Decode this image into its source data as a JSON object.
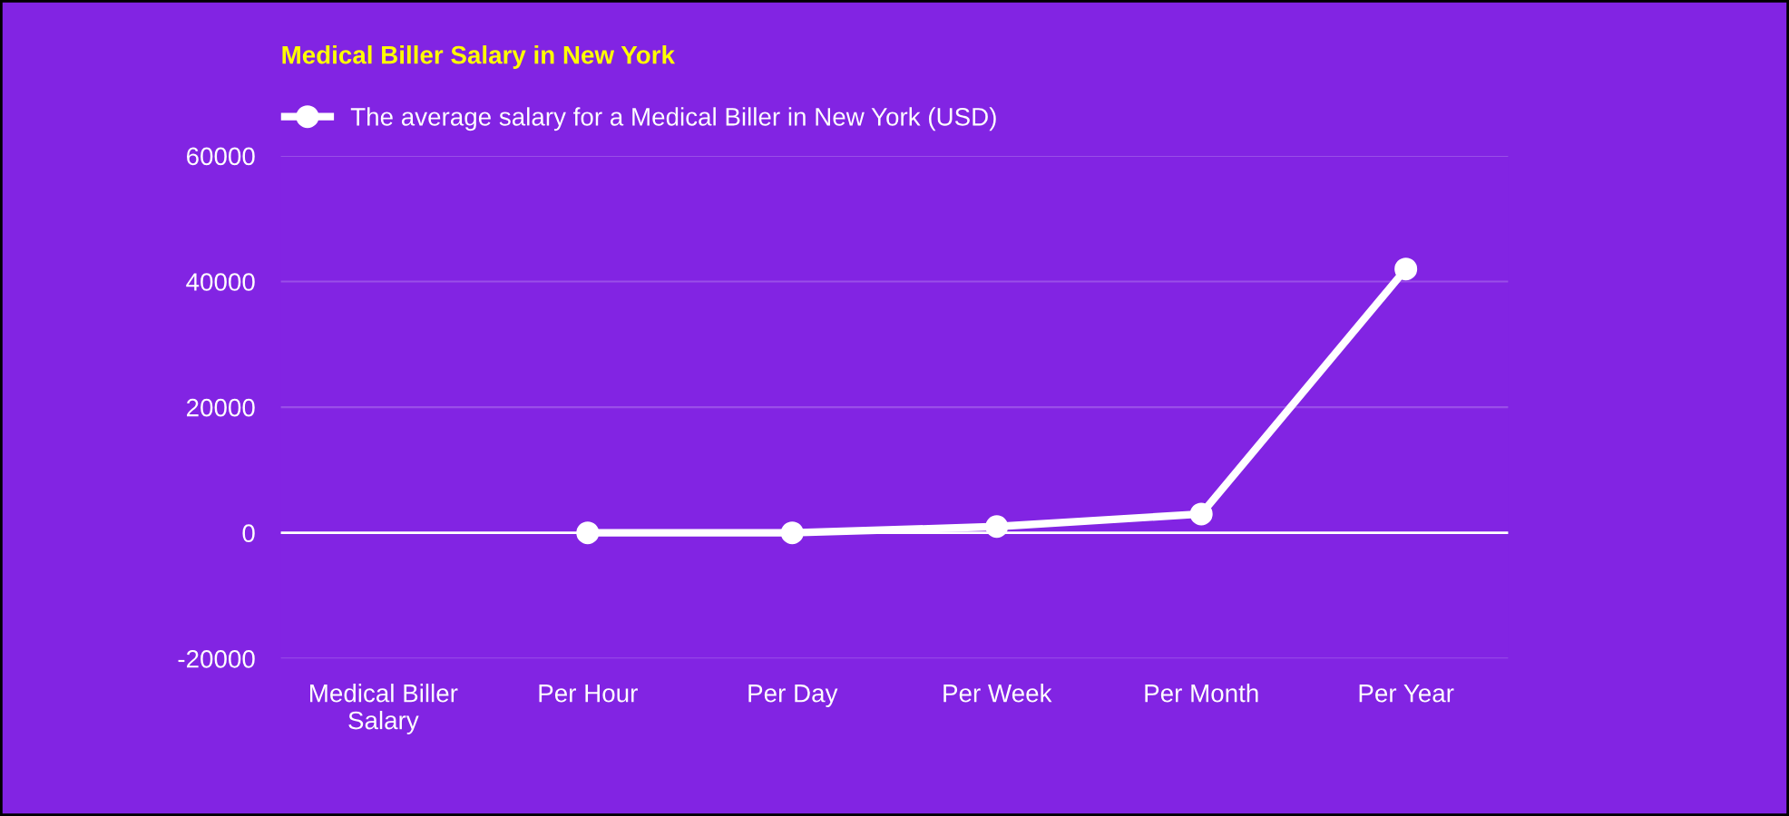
{
  "chart_data": {
    "type": "line",
    "title": "Medical Biller Salary in New York",
    "categories": [
      "Medical Biller\nSalary",
      "Per Hour",
      "Per Day",
      "Per Week",
      "Per Month",
      "Per Year"
    ],
    "series": [
      {
        "name": "The average salary for a Medical Biller in New York (USD)",
        "color": "#ffffff",
        "values": [
          null,
          0,
          0,
          1000,
          3000,
          42000
        ]
      }
    ],
    "ylim": [
      -20000,
      60000
    ],
    "yticks": [
      -20000,
      0,
      20000,
      40000,
      60000
    ],
    "grid": "y",
    "legend": "top",
    "marker": "circle",
    "line_style": "solid",
    "ref_lines": [
      {
        "axis": "y",
        "value": 0,
        "color": "#ffffff"
      }
    ]
  }
}
